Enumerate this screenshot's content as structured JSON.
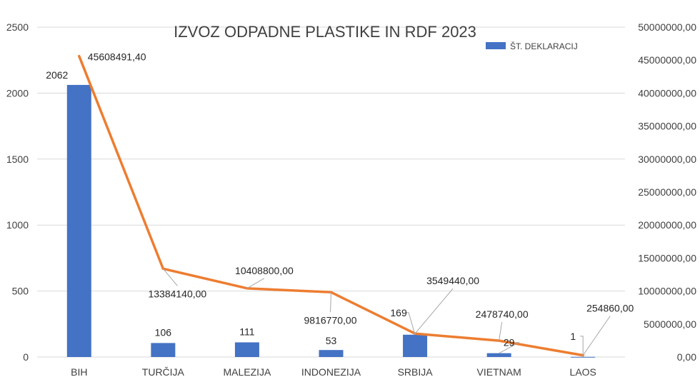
{
  "chart_data": {
    "type": "bar",
    "title": "IZVOZ ODPADNE PLASTIKE IN RDF 2023",
    "categories": [
      "BIH",
      "TURČIJA",
      "MALEZIJA",
      "INDONEZIJA",
      "SRBIJA",
      "VIETNAM",
      "LAOS"
    ],
    "series": [
      {
        "name": "ŠT. DEKLARACIJ",
        "type": "bar",
        "axis": "left",
        "color": "#4472c4",
        "values": [
          2062,
          106,
          111,
          53,
          169,
          29,
          1
        ],
        "labels": [
          "2062",
          "106",
          "111",
          "53",
          "169",
          "29",
          "1"
        ]
      },
      {
        "type": "line",
        "axis": "right",
        "color": "#ed7d31",
        "values": [
          45608491.4,
          13384140.0,
          10408800.0,
          9816770.0,
          3549440.0,
          2478740.0,
          254860.0
        ],
        "labels": [
          "45608491,40",
          "13384140,00",
          "10408800,00",
          "9816770,00",
          "3549440,00",
          "2478740,00",
          "254860,00"
        ]
      }
    ],
    "y_left": {
      "ylim": [
        0,
        2500
      ],
      "ticks": [
        "0",
        "500",
        "1000",
        "1500",
        "2000",
        "2500"
      ]
    },
    "y_right": {
      "ylim": [
        0,
        50000000
      ],
      "ticks": [
        "0,00",
        "5000000,00",
        "10000000,00",
        "15000000,00",
        "20000000,00",
        "25000000,00",
        "30000000,00",
        "35000000,00",
        "40000000,00",
        "45000000,00",
        "50000000,00"
      ]
    },
    "grid": true,
    "legend_position": "top-right"
  }
}
